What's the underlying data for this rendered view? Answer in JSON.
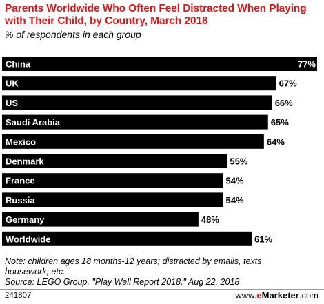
{
  "header": {
    "title": "Parents Worldwide Who Often Feel Distracted When Playing with Their Child, by Country, March 2018",
    "subtitle": "% of respondents in each group"
  },
  "chart_data": {
    "type": "bar",
    "orientation": "horizontal",
    "categories": [
      "China",
      "UK",
      "US",
      "Saudi Arabia",
      "Mexico",
      "Denmark",
      "France",
      "Russia",
      "Germany",
      "Worldwide"
    ],
    "values": [
      77,
      67,
      66,
      65,
      64,
      55,
      54,
      54,
      48,
      61
    ],
    "value_labels": [
      "77%",
      "67%",
      "66%",
      "65%",
      "64%",
      "55%",
      "54%",
      "54%",
      "48%",
      "61%"
    ],
    "xlim": [
      0,
      77
    ],
    "grid": false,
    "legend": "none",
    "colors": {
      "bar": "#000000",
      "label_inside": "#ffffff",
      "value_text": "#000000",
      "title": "#d7191c"
    }
  },
  "footer": {
    "note_line1": "Note: children ages 18 months-12 years; distracted by emails, texts",
    "note_line2": "housework, etc.",
    "source": "Source: LEGO Group, \"Play Well Report 2018,\" Aug 22, 2018",
    "chart_id": "241807",
    "brand_prefix": "www.",
    "brand_e": "e",
    "brand_name": "Marketer",
    "brand_suffix": ".com"
  }
}
